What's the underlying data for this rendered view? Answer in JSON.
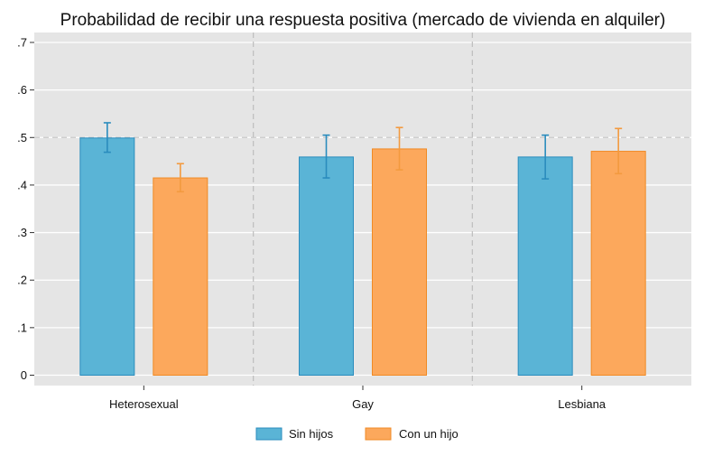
{
  "chart_data": {
    "type": "bar",
    "title": "Probabilidad de recibir una respuesta positiva (mercado de vivienda en alquiler)",
    "xlabel": "",
    "ylabel": "",
    "categories": [
      "Heterosexual",
      "Gay",
      "Lesbiana"
    ],
    "series": [
      {
        "name": "Sin hijos",
        "color": "#5ab4d6",
        "values": [
          0.499,
          0.459,
          0.459
        ],
        "ci_low": [
          0.469,
          0.415,
          0.413
        ],
        "ci_high": [
          0.531,
          0.505,
          0.505
        ]
      },
      {
        "name": "Con un hijo",
        "color": "#fca85c",
        "values": [
          0.415,
          0.476,
          0.471
        ],
        "ci_low": [
          0.386,
          0.432,
          0.424
        ],
        "ci_high": [
          0.445,
          0.521,
          0.519
        ]
      }
    ],
    "ylim": [
      -0.02,
      0.73
    ],
    "yticks": [
      0,
      0.1,
      0.2,
      0.3,
      0.4,
      0.5,
      0.6,
      0.7
    ],
    "ytick_labels": [
      "0",
      ".1",
      ".2",
      ".3",
      ".4",
      ".5",
      ".6",
      ".7"
    ],
    "reference_line": 0.5,
    "grid": true,
    "legend_position": "bottom"
  }
}
